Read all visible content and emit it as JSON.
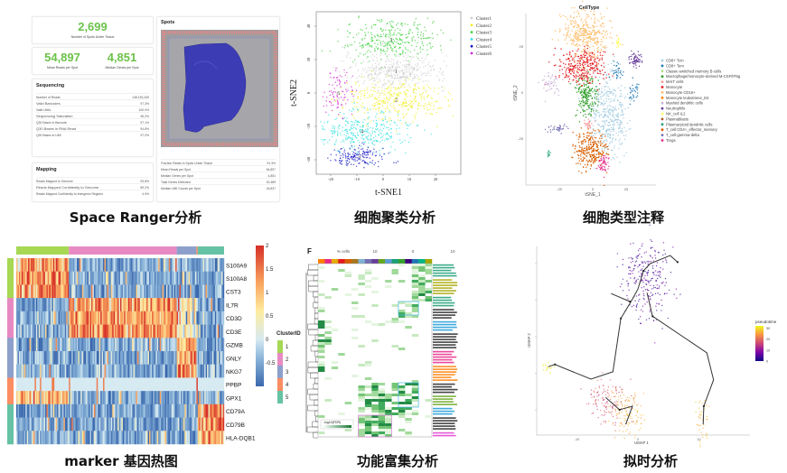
{
  "captions": [
    "Space Ranger分析",
    "细胞聚类分析",
    "细胞类型注释",
    "marker 基因热图",
    "功能富集分析",
    "拟时分析"
  ],
  "space_ranger": {
    "spots_under_tissue": {
      "value": "2,699",
      "label": "Number of Spots Under Tissue"
    },
    "mean_reads": {
      "value": "54,897",
      "label": "Mean Reads per Spot"
    },
    "median_genes": {
      "value": "4,851",
      "label": "Median Genes per Spot"
    },
    "sequencing": {
      "title": "Sequencing",
      "rows": [
        [
          "Number of Reads",
          "148,153,430"
        ],
        [
          "Valid Barcodes",
          "97.3%"
        ],
        [
          "Valid UMIs",
          "100.0%"
        ],
        [
          "Sequencing Saturation",
          "46.2%"
        ],
        [
          "Q30 Bases in Barcode",
          "97.1%"
        ],
        [
          "Q30 Bases in RNA Read",
          "94.8%"
        ],
        [
          "Q30 Bases in UMI",
          "97.2%"
        ]
      ]
    },
    "mapping": {
      "title": "Mapping",
      "rows": [
        [
          "Reads Mapped to Genome",
          "93.8%"
        ],
        [
          "Reads Mapped Confidently to Genome",
          "89.2%"
        ],
        [
          "Reads Mapped Confidently to Intergenic Regions",
          "4.0%"
        ]
      ]
    },
    "spots": {
      "title": "Spots",
      "rows": [
        [
          "Fraction Reads in Spots Under Tissue",
          "91.3%"
        ],
        [
          "Mean Reads per Spot",
          "54,897"
        ],
        [
          "Median Genes per Spot",
          "4,851"
        ],
        [
          "Total Genes Detected",
          "20,489"
        ],
        [
          "Median UMI Counts per Spot",
          "18,837"
        ]
      ]
    }
  },
  "chart_data": [
    {
      "type": "scatter",
      "xlabel": "t-SNE1",
      "ylabel": "t-SNE2",
      "xticks": [
        -20,
        -10,
        0,
        10,
        20
      ],
      "yticks": [
        -40,
        -20,
        0,
        20,
        40
      ],
      "xlim": [
        -25,
        28
      ],
      "ylim": [
        -48,
        48
      ],
      "clusters": [
        {
          "name": "Cluster1",
          "label": "1",
          "color": "#cfcfcf",
          "center": [
            5,
            13
          ],
          "sd": [
            10,
            5
          ],
          "n": 420
        },
        {
          "name": "Cluster2",
          "label": "2",
          "color": "#f2ef2a",
          "center": [
            5,
            -4
          ],
          "sd": [
            10,
            6
          ],
          "n": 380
        },
        {
          "name": "Cluster3",
          "label": "3",
          "color": "#3ed23e",
          "center": [
            3,
            32
          ],
          "sd": [
            9,
            6
          ],
          "n": 330
        },
        {
          "name": "Cluster4",
          "label": "4",
          "color": "#33e0e0",
          "center": [
            -8,
            -23
          ],
          "sd": [
            9,
            6
          ],
          "n": 330
        },
        {
          "name": "Cluster5",
          "label": "5",
          "color": "#1c1cc8",
          "center": [
            -9,
            -38
          ],
          "sd": [
            5,
            3
          ],
          "n": 160
        },
        {
          "name": "Cluster6",
          "label": "6",
          "color": "#d52ad5",
          "center": [
            -17,
            0
          ],
          "sd": [
            3,
            7
          ],
          "n": 90
        }
      ]
    },
    {
      "type": "scatter",
      "title": "CellType",
      "xlabel": "tSNE_1",
      "ylabel": "tSNE_2",
      "xticks": [
        -25,
        0,
        25
      ],
      "yticks": [
        -25,
        0,
        25
      ],
      "clusters": [
        {
          "name": "CD8+ Tcm",
          "color": "#a6cee3",
          "center": [
            12,
            -12
          ],
          "sd": [
            7,
            11
          ],
          "n": 420
        },
        {
          "name": "CD8+ Tem",
          "color": "#1f78b4",
          "center": [
            18,
            12
          ],
          "sd": [
            2,
            3
          ],
          "n": 60,
          "extra_center": [
            30,
            0
          ]
        },
        {
          "name": "Classic-switched memory B-cells",
          "color": "#b2df8a",
          "center": [
            0,
            0
          ],
          "sd": [
            1,
            1
          ],
          "n": 0
        },
        {
          "name": "Macrophage/monocyte-derived M-CSF/IFNg",
          "color": "#33a02c",
          "center": [
            -5,
            -2
          ],
          "sd": [
            4,
            6
          ],
          "n": 200
        },
        {
          "name": "MAIT cells",
          "color": "#fb9a99",
          "center": [
            -3,
            -17
          ],
          "sd": [
            1.5,
            1.5
          ],
          "n": 25
        },
        {
          "name": "Monocyte",
          "color": "#e31a1c",
          "center": [
            -9,
            14
          ],
          "sd": [
            9,
            5
          ],
          "n": 300
        },
        {
          "name": "Monocyte CD16+",
          "color": "#fdbf6f",
          "center": [
            -5,
            32
          ],
          "sd": [
            8,
            6
          ],
          "n": 380
        },
        {
          "name": "Monocyte leukotriene_D4",
          "color": "#ff7f00",
          "center": [
            0,
            0
          ],
          "sd": [
            1,
            1
          ],
          "n": 0
        },
        {
          "name": "Myeloid dendritic cells",
          "color": "#cab2d6",
          "center": [
            -32,
            6
          ],
          "sd": [
            4,
            3
          ],
          "n": 50
        },
        {
          "name": "Neutrophils",
          "color": "#6a3d9a",
          "center": [
            32,
            18
          ],
          "sd": [
            3,
            2
          ],
          "n": 60
        },
        {
          "name": "NK_cell IL2",
          "color": "#ffff66",
          "center": [
            19,
            28
          ],
          "sd": [
            0.8,
            2
          ],
          "n": 20
        },
        {
          "name": "Plasmablasts",
          "color": "#b15928",
          "center": [
            0,
            0
          ],
          "sd": [
            1,
            1
          ],
          "n": 0
        },
        {
          "name": "Plasmacytoid dendritic cells",
          "color": "#1b9e77",
          "center": [
            -33,
            -33
          ],
          "sd": [
            0.6,
            1
          ],
          "n": 10
        },
        {
          "name": "T_cell:CD4+_effector_memory",
          "color": "#d95f02",
          "center": [
            -2,
            -31
          ],
          "sd": [
            6,
            5
          ],
          "n": 280
        },
        {
          "name": "T_cell:gamma-delta",
          "color": "#7570b3",
          "center": [
            -27,
            -19
          ],
          "sd": [
            4,
            1.2
          ],
          "n": 35
        },
        {
          "name": "Tregs",
          "color": "#e7298a",
          "center": [
            8,
            -38
          ],
          "sd": [
            2,
            3
          ],
          "n": 50
        }
      ]
    },
    {
      "type": "heatmap",
      "legend_title": "ClusterID",
      "colorbar_ticks": [
        -0.5,
        0,
        0.5,
        1,
        1.5,
        2
      ],
      "vmin": -1,
      "vmax": 2,
      "genes": [
        "S100A9",
        "S100A8",
        "CST3",
        "IL7R",
        "CD3D",
        "CD3E",
        "GZMB",
        "GNLY",
        "NKG7",
        "PPBP",
        "GPX1",
        "CD79A",
        "CD79B",
        "HLA-DQB1"
      ],
      "gene_cluster": [
        1,
        1,
        1,
        2,
        2,
        2,
        3,
        3,
        3,
        4,
        4,
        5,
        5,
        5
      ],
      "clusters": [
        {
          "id": "1",
          "color": "#a6d854",
          "cells": 40
        },
        {
          "id": "2",
          "color": "#e78ac3",
          "cells": 82
        },
        {
          "id": "3",
          "color": "#8da0cb",
          "cells": 15
        },
        {
          "id": "4",
          "color": "#fc8d62",
          "cells": 1
        },
        {
          "id": "5",
          "color": "#66c2a5",
          "cells": 20
        }
      ]
    },
    {
      "type": "heatmap",
      "panel_label": "F",
      "legend_title": "-log10(FDR)",
      "header": [
        "% cells",
        "10",
        "0",
        "10"
      ],
      "column_colors": [
        "#ff7f00",
        "#e7298a",
        "#e6ab02",
        "#e31a1c",
        "#d95f02",
        "#a6761d",
        "#80b1d3",
        "#7570b3",
        "#6a3d9a",
        "#66a61e",
        "#5b9bd5",
        "#1b9e77",
        "#33a02c",
        "#3f007d",
        "#1f78b4",
        "#00b48a",
        "#a6a600"
      ],
      "term_group_colors": [
        "#1b9e77",
        "#a6a600",
        "#1b9e77",
        "#222222",
        "#1f9bd7",
        "#222222",
        "#e7298a",
        "#ff7f00",
        "#222222",
        "#66a61e",
        "#1f9bd7",
        "#222222",
        "#e040d0"
      ]
    },
    {
      "type": "line",
      "xlabel": "UMAP 1",
      "ylabel": "UMAP 2",
      "xticks": [
        -10,
        0,
        10
      ],
      "legend_title": "pseudotime",
      "legend_ticks": [
        0,
        10,
        20,
        30
      ],
      "trajectory": [
        [
          [
            -14.7,
            -4.1
          ],
          [
            -13.6,
            -3.8
          ],
          [
            -7.7,
            -5.8
          ],
          [
            -4.1,
            -4.8
          ],
          [
            -2.8,
            2.5
          ],
          [
            -1.2,
            4.7
          ],
          [
            0,
            6.5
          ],
          [
            0.9,
            9
          ],
          [
            2,
            10
          ],
          [
            5.3,
            11.1
          ],
          [
            6.5,
            10.2
          ]
        ],
        [
          [
            -4.4,
            5.9
          ],
          [
            -1.3,
            4.8
          ]
        ],
        [
          [
            1.5,
            6
          ],
          [
            2.4,
            2.8
          ],
          [
            11.3,
            -2.2
          ],
          [
            12.4,
            -5.9
          ],
          [
            10.8,
            -9.5
          ],
          [
            10.7,
            -12
          ]
        ],
        [
          [
            -5.3,
            -8.3
          ],
          [
            -3,
            -10
          ],
          [
            -0.9,
            -9.5
          ],
          [
            -2,
            -12
          ]
        ]
      ],
      "cell_groups": [
        {
          "center": [
            1.5,
            8
          ],
          "sd": [
            2,
            2.6
          ],
          "n": 260,
          "pseudotime": [
            0,
            9
          ]
        },
        {
          "center": [
            -5,
            -9
          ],
          "sd": [
            1.8,
            1.5
          ],
          "n": 130,
          "pseudotime": [
            14,
            22
          ]
        },
        {
          "center": [
            -1.8,
            -10.5
          ],
          "sd": [
            1.4,
            1.6
          ],
          "n": 110,
          "pseudotime": [
            24,
            28
          ]
        },
        {
          "center": [
            -15,
            -4.3
          ],
          "sd": [
            0.5,
            0.3
          ],
          "n": 20,
          "pseudotime": [
            30,
            31
          ]
        },
        {
          "center": [
            10.5,
            -11.5
          ],
          "sd": [
            0.5,
            1.5
          ],
          "n": 40,
          "pseudotime": [
            26,
            28
          ]
        }
      ]
    }
  ]
}
